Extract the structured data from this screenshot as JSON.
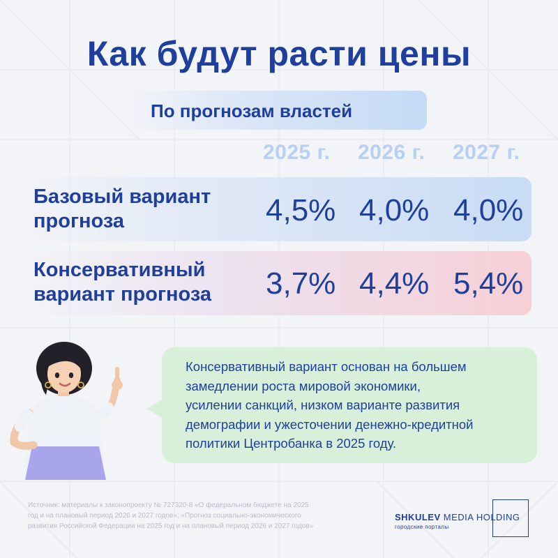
{
  "title": "Как будут расти цены",
  "subtitle": "По прогнозам властей",
  "years": [
    "2025 г.",
    "2026 г.",
    "2027 г."
  ],
  "rows": [
    {
      "label_line1": "Базовый вариант",
      "label_line2": "прогноза",
      "values": [
        "4,5%",
        "4,0%",
        "4,0%"
      ]
    },
    {
      "label_line1": "Консервативный",
      "label_line2": "вариант прогноза",
      "values": [
        "3,7%",
        "4,4%",
        "5,4%"
      ]
    }
  ],
  "bubble": {
    "lines": [
      "Консервативный вариант основан на большем",
      "замедлении роста мировой экономики,",
      "усилении санкций, низком варианте развития",
      "демографии и ужесточении денежно-кредитной",
      "политики Центробанка в 2025 году."
    ]
  },
  "source": {
    "lines": [
      "Источник: материалы к законопроекту № 727320-8 «О федеральном бюджете на 2025",
      "год и на плановый период 2026 и 2027 годов»; «Прогноз социально-экономического",
      "развития Российской Федерации на 2025 год и на плановый период 2026 и 2027 годов»"
    ]
  },
  "logo": {
    "brand": "SHKULEV",
    "name": "MEDIA HOLDING",
    "tagline": "городские порталы"
  },
  "colors": {
    "primary": "#1e3f9c",
    "year": "#b6cff2",
    "bubble": "#d8f0d9",
    "background": "#f3f4f8"
  }
}
